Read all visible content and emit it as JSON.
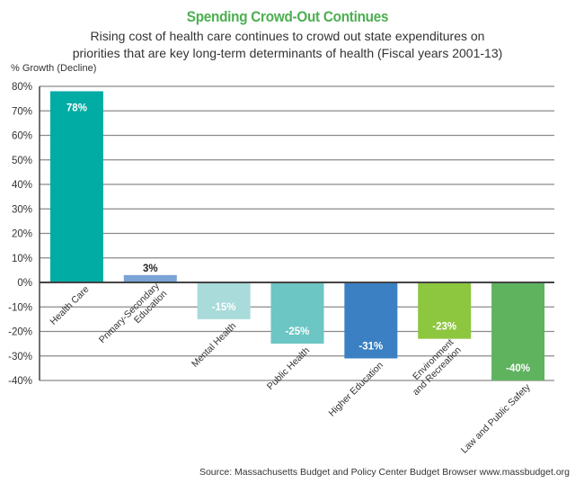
{
  "chart_data": {
    "type": "bar",
    "title": "Spending Crowd-Out Continues",
    "subtitle_lines": [
      "Rising cost of health care continues to crowd out state expenditures on",
      "priorities that are key long-term determinants of health (Fiscal years 2001-13)"
    ],
    "xlabel": "",
    "ylabel": "% Growth (Decline)",
    "ylim": [
      -40,
      80
    ],
    "yticks": [
      80,
      70,
      60,
      50,
      40,
      30,
      20,
      10,
      0,
      -10,
      -20,
      -30,
      -40
    ],
    "ytick_labels": [
      "80%",
      "70%",
      "60%",
      "50%",
      "40%",
      "30%",
      "20%",
      "10%",
      "0%",
      "-10%",
      "-20%",
      "-30%",
      "-40%"
    ],
    "grid": true,
    "legend": "none",
    "categories": [
      [
        "Health Care"
      ],
      [
        "Primary-Secondary",
        "Education"
      ],
      [
        "Mental Health"
      ],
      [
        "Public Health"
      ],
      [
        "Higher Education"
      ],
      [
        "Environment",
        "and Recreation"
      ],
      [
        "Law and Public Safety"
      ]
    ],
    "values": [
      78,
      3,
      -15,
      -25,
      -31,
      -23,
      -40
    ],
    "data_labels": [
      "78%",
      "3%",
      "-15%",
      "-25%",
      "-31%",
      "-23%",
      "-40%"
    ],
    "colors": [
      "#00aca4",
      "#7ba3d6",
      "#a8dbda",
      "#6cc6c4",
      "#3a80c3",
      "#8dc63f",
      "#5fb35f"
    ],
    "label_colors": [
      "#ffffff",
      "#222222",
      "#ffffff",
      "#ffffff",
      "#ffffff",
      "#ffffff",
      "#ffffff"
    ]
  },
  "source": "Source: Massachusetts Budget and Policy Center Budget Browser www.massbudget.org"
}
